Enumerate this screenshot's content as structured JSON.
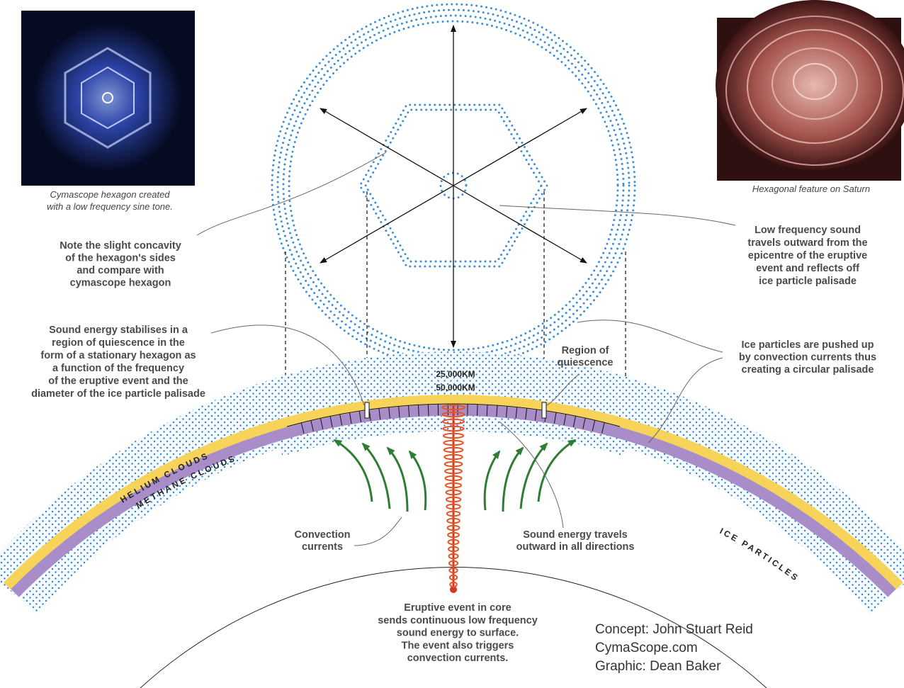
{
  "images": {
    "cymascope_caption": [
      "Cymascope hexagon created",
      "with a low frequency sine tone."
    ],
    "saturn_caption": "Hexagonal feature on Saturn"
  },
  "annotations": {
    "concavity": [
      "Note the slight concavity",
      "of the hexagon's sides",
      "and compare with",
      "cymascope hexagon"
    ],
    "low_frequency": [
      "Low frequency sound",
      "travels outward from the",
      "epicentre of the eruptive",
      "event and reflects off",
      "ice particle palisade"
    ],
    "stabilises": [
      "Sound energy stabilises in a",
      "region of quiescence in the",
      "form of a stationary hexagon as",
      "a function of the frequency",
      "of the eruptive event and the",
      "diameter of the ice particle palisade"
    ],
    "quiescence": [
      "Region of",
      "quiescence"
    ],
    "ice_pushed": [
      "Ice particles are pushed up",
      "by convection currents thus",
      "creating a circular palisade"
    ],
    "convection": [
      "Convection",
      "currents"
    ],
    "sound_travels": [
      "Sound energy travels",
      "outward in all directions"
    ],
    "eruptive": [
      "Eruptive event in core",
      "sends continuous low frequency",
      "sound energy to surface.",
      "The event also triggers",
      "convection currents."
    ]
  },
  "dimensions": {
    "inner": "25,000KM",
    "outer": "50,000KM"
  },
  "layers": {
    "helium": "HELIUM CLOUDS",
    "methane": "METHANE CLOUDS",
    "ice": "ICE PARTICLES"
  },
  "credits": [
    "Concept: John Stuart Reid",
    "CymaScope.com",
    "Graphic: Dean Baker"
  ]
}
